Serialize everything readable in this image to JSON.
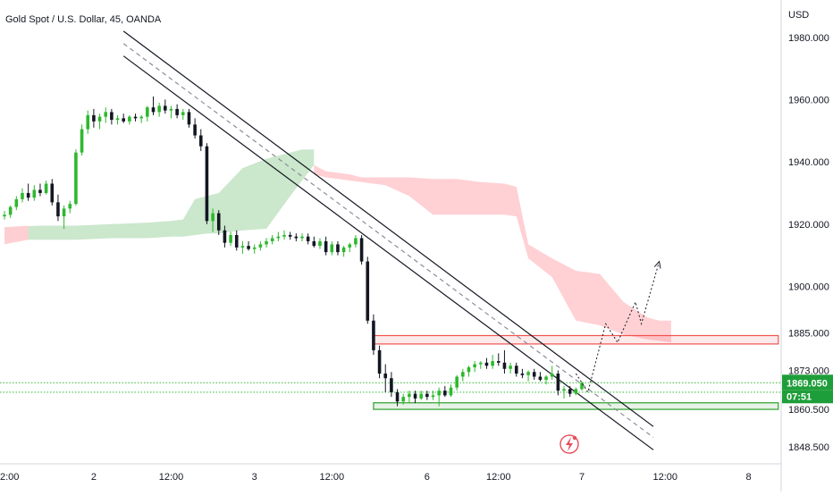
{
  "header": {
    "title": "Gold Spot / U.S. Dollar, 45, OANDA"
  },
  "axis": {
    "currency": "USD",
    "current_price": "1869.050",
    "countdown": "07:51",
    "x_labels": [
      "2:00",
      "2",
      "12:00",
      "3",
      "12:00",
      "6",
      "12:00",
      "7",
      "12:00",
      "8"
    ],
    "y_labels": [
      {
        "value": 1980,
        "label": "1980.000"
      },
      {
        "value": 1960,
        "label": "1960.000"
      },
      {
        "value": 1940,
        "label": "1940.000"
      },
      {
        "value": 1920,
        "label": "1920.000"
      },
      {
        "value": 1900,
        "label": "1900.000"
      },
      {
        "value": 1885,
        "label": "1885.000"
      },
      {
        "value": 1873,
        "label": "1873.000"
      },
      {
        "value": 1860.5,
        "label": "1860.500"
      },
      {
        "value": 1848.5,
        "label": "1848.500"
      }
    ]
  },
  "colors": {
    "up": "#26a69a",
    "up_bright": "#2eb82e",
    "down": "#131722",
    "cloud_bull": "#c8e6c9",
    "cloud_bear": "#ffcdd2",
    "resistance": "#ef5350",
    "support": "#2e9e2e",
    "price_tag": "#1e9e3a",
    "trendline": "#131722"
  },
  "chart_data": {
    "type": "candlestick",
    "title": "Gold Spot / U.S. Dollar, 45, OANDA",
    "ylabel": "USD",
    "ylim": [
      1843,
      1992
    ],
    "x_range": [
      0,
      124
    ],
    "price_scale": "linear",
    "grid": false,
    "candles": [
      [
        1922.5,
        1924.2,
        1921.5,
        1923.0
      ],
      [
        1923.0,
        1926.0,
        1922.0,
        1925.5
      ],
      [
        1925.5,
        1929.0,
        1924.5,
        1928.0
      ],
      [
        1928.0,
        1931.5,
        1927.0,
        1930.0
      ],
      [
        1930.0,
        1933.0,
        1927.5,
        1928.5
      ],
      [
        1928.5,
        1932.5,
        1927.5,
        1931.0
      ],
      [
        1931.0,
        1933.0,
        1929.0,
        1930.0
      ],
      [
        1930.0,
        1934.0,
        1929.5,
        1933.0
      ],
      [
        1933.0,
        1934.5,
        1926.0,
        1927.0
      ],
      [
        1927.0,
        1929.5,
        1921.0,
        1922.5
      ],
      [
        1922.5,
        1926.0,
        1918.5,
        1925.0
      ],
      [
        1925.0,
        1927.5,
        1923.5,
        1926.5
      ],
      [
        1926.5,
        1944.0,
        1926.0,
        1943.0
      ],
      [
        1943.0,
        1952.0,
        1942.0,
        1950.5
      ],
      [
        1950.5,
        1956.5,
        1949.0,
        1955.0
      ],
      [
        1955.0,
        1957.0,
        1951.0,
        1953.0
      ],
      [
        1953.0,
        1955.5,
        1950.5,
        1954.5
      ],
      [
        1954.5,
        1957.5,
        1952.5,
        1956.0
      ],
      [
        1956.0,
        1957.0,
        1952.0,
        1953.5
      ],
      [
        1953.5,
        1955.0,
        1952.0,
        1954.0
      ],
      [
        1954.0,
        1955.5,
        1952.5,
        1953.0
      ],
      [
        1953.0,
        1955.0,
        1952.0,
        1954.5
      ],
      [
        1954.5,
        1955.5,
        1953.0,
        1954.0
      ],
      [
        1954.0,
        1955.0,
        1952.5,
        1954.5
      ],
      [
        1954.5,
        1958.0,
        1953.0,
        1957.5
      ],
      [
        1957.5,
        1961.0,
        1955.0,
        1956.0
      ],
      [
        1956.0,
        1959.0,
        1954.5,
        1958.0
      ],
      [
        1958.0,
        1960.0,
        1955.5,
        1956.5
      ],
      [
        1956.5,
        1958.0,
        1954.0,
        1957.0
      ],
      [
        1957.0,
        1958.5,
        1954.0,
        1955.0
      ],
      [
        1955.0,
        1957.0,
        1953.5,
        1956.0
      ],
      [
        1956.0,
        1957.0,
        1951.0,
        1952.0
      ],
      [
        1952.0,
        1954.0,
        1947.5,
        1948.5
      ],
      [
        1948.5,
        1950.5,
        1943.5,
        1945.0
      ],
      [
        1945.0,
        1946.0,
        1920.0,
        1921.0
      ],
      [
        1921.0,
        1925.0,
        1917.5,
        1923.5
      ],
      [
        1923.5,
        1924.5,
        1916.5,
        1918.0
      ],
      [
        1918.0,
        1919.5,
        1912.5,
        1914.0
      ],
      [
        1914.0,
        1917.5,
        1913.0,
        1916.5
      ],
      [
        1916.5,
        1918.0,
        1911.5,
        1912.5
      ],
      [
        1912.5,
        1914.5,
        1910.5,
        1913.0
      ],
      [
        1913.0,
        1914.5,
        1911.5,
        1912.0
      ],
      [
        1912.0,
        1913.5,
        1910.5,
        1912.5
      ],
      [
        1912.5,
        1914.5,
        1911.5,
        1913.5
      ],
      [
        1913.5,
        1915.5,
        1912.5,
        1914.5
      ],
      [
        1914.5,
        1916.5,
        1913.5,
        1915.5
      ],
      [
        1915.5,
        1917.5,
        1914.5,
        1916.0
      ],
      [
        1916.0,
        1918.0,
        1915.0,
        1916.5
      ],
      [
        1916.5,
        1917.5,
        1915.0,
        1916.0
      ],
      [
        1916.0,
        1917.0,
        1914.5,
        1915.5
      ],
      [
        1915.5,
        1917.0,
        1914.5,
        1916.0
      ],
      [
        1916.0,
        1917.0,
        1913.5,
        1914.5
      ],
      [
        1914.5,
        1916.0,
        1912.5,
        1913.0
      ],
      [
        1913.0,
        1915.5,
        1912.0,
        1914.5
      ],
      [
        1914.5,
        1916.0,
        1910.0,
        1911.0
      ],
      [
        1911.0,
        1914.5,
        1910.0,
        1913.5
      ],
      [
        1913.5,
        1914.5,
        1910.0,
        1911.0
      ],
      [
        1911.0,
        1913.0,
        1909.5,
        1912.5
      ],
      [
        1912.5,
        1914.0,
        1911.0,
        1913.5
      ],
      [
        1913.5,
        1916.5,
        1912.5,
        1915.5
      ],
      [
        1915.5,
        1916.5,
        1907.0,
        1908.0
      ],
      [
        1908.0,
        1909.5,
        1888.0,
        1889.0
      ],
      [
        1889.0,
        1891.0,
        1878.0,
        1879.5
      ],
      [
        1879.5,
        1881.0,
        1870.5,
        1872.0
      ],
      [
        1872.0,
        1875.0,
        1866.0,
        1870.5
      ],
      [
        1870.5,
        1872.5,
        1864.5,
        1866.0
      ],
      [
        1866.0,
        1867.0,
        1861.5,
        1863.0
      ],
      [
        1863.0,
        1865.5,
        1862.0,
        1864.5
      ],
      [
        1864.5,
        1866.5,
        1862.5,
        1865.5
      ],
      [
        1865.5,
        1866.5,
        1862.5,
        1864.0
      ],
      [
        1864.0,
        1866.5,
        1863.5,
        1865.5
      ],
      [
        1865.5,
        1866.5,
        1863.5,
        1864.5
      ],
      [
        1864.5,
        1866.5,
        1863.5,
        1865.0
      ],
      [
        1865.0,
        1867.5,
        1861.5,
        1866.5
      ],
      [
        1866.5,
        1868.0,
        1864.5,
        1865.0
      ],
      [
        1865.0,
        1868.5,
        1864.5,
        1867.5
      ],
      [
        1867.5,
        1871.5,
        1866.5,
        1871.0
      ],
      [
        1871.0,
        1873.5,
        1869.5,
        1872.5
      ],
      [
        1872.5,
        1874.5,
        1871.0,
        1874.0
      ],
      [
        1874.0,
        1876.0,
        1872.5,
        1875.0
      ],
      [
        1875.0,
        1876.0,
        1873.5,
        1875.5
      ],
      [
        1875.5,
        1877.0,
        1873.5,
        1874.5
      ],
      [
        1874.5,
        1878.0,
        1873.5,
        1876.0
      ],
      [
        1876.0,
        1878.5,
        1874.5,
        1875.5
      ],
      [
        1875.5,
        1879.5,
        1872.0,
        1873.5
      ],
      [
        1873.5,
        1875.5,
        1872.0,
        1874.5
      ],
      [
        1874.5,
        1875.5,
        1871.0,
        1872.0
      ],
      [
        1872.0,
        1873.5,
        1870.5,
        1871.5
      ],
      [
        1871.5,
        1873.0,
        1869.5,
        1872.5
      ],
      [
        1872.5,
        1873.5,
        1870.0,
        1871.0
      ],
      [
        1871.0,
        1872.5,
        1869.5,
        1870.0
      ],
      [
        1870.0,
        1871.5,
        1868.5,
        1871.0
      ],
      [
        1871.0,
        1874.5,
        1870.0,
        1872.0
      ],
      [
        1872.0,
        1873.0,
        1865.0,
        1866.5
      ],
      [
        1866.5,
        1868.0,
        1864.0,
        1867.0
      ],
      [
        1867.0,
        1868.0,
        1864.5,
        1865.5
      ],
      [
        1865.5,
        1867.5,
        1865.0,
        1867.0
      ],
      [
        1867.0,
        1869.5,
        1866.5,
        1869.05
      ]
    ],
    "ichimoku_cloud": {
      "bull_segments": [
        {
          "x": [
            0,
            6,
            12,
            18,
            24,
            28,
            30,
            32,
            34,
            36,
            38,
            40,
            44,
            48,
            50,
            52
          ],
          "upper": [
            1919,
            1919.5,
            1919.5,
            1920,
            1920.5,
            1921,
            1921.5,
            1928,
            1929,
            1930,
            1934,
            1938,
            1941,
            1943,
            1944,
            1944
          ],
          "lower": [
            1915,
            1915,
            1915,
            1915.5,
            1915.5,
            1916,
            1916,
            1916.5,
            1917,
            1917,
            1917.5,
            1918,
            1918.5,
            1929,
            1934,
            1939
          ]
        }
      ],
      "bear_segments": [
        {
          "x": [
            0,
            4
          ],
          "upper": [
            1919,
            1919.5
          ],
          "lower": [
            1913.5,
            1915
          ]
        },
        {
          "x": [
            52,
            54,
            58,
            60,
            64,
            68,
            72,
            76,
            80,
            84,
            86,
            88,
            92,
            96,
            100,
            104,
            108,
            110,
            112
          ],
          "upper": [
            1939,
            1937,
            1936,
            1935,
            1935,
            1935,
            1934.5,
            1934.5,
            1933.5,
            1933,
            1932,
            1913.5,
            1909,
            1905,
            1904,
            1895,
            1890,
            1889,
            1889
          ],
          "lower": [
            1936,
            1935,
            1934,
            1933.5,
            1932.5,
            1929,
            1923,
            1923,
            1923,
            1923,
            1922.5,
            1909,
            1903,
            1889,
            1887.5,
            1884.5,
            1883,
            1882.5,
            1882
          ]
        }
      ]
    },
    "channel_lines": [
      {
        "style": "solid",
        "from": {
          "x": 20,
          "y": 1982
        },
        "to": {
          "x": 109,
          "y": 1855
        }
      },
      {
        "style": "dashed",
        "from": {
          "x": 20,
          "y": 1978
        },
        "to": {
          "x": 109,
          "y": 1851.5
        }
      },
      {
        "style": "solid",
        "from": {
          "x": 20,
          "y": 1974
        },
        "to": {
          "x": 109,
          "y": 1847.5
        }
      }
    ],
    "zones": [
      {
        "kind": "resistance",
        "x": [
          62,
          130
        ],
        "y": [
          1881.5,
          1884.2
        ]
      },
      {
        "kind": "support",
        "x": [
          62,
          130
        ],
        "y": [
          1860.5,
          1862.6
        ]
      }
    ],
    "horizontal_levels": [
      1869.05,
      1866.0
    ],
    "projection_path": [
      {
        "x": 96,
        "y": 1872
      },
      {
        "x": 98,
        "y": 1866
      },
      {
        "x": 101,
        "y": 1888
      },
      {
        "x": 103,
        "y": 1882
      },
      {
        "x": 106,
        "y": 1895
      },
      {
        "x": 107,
        "y": 1888
      },
      {
        "x": 110,
        "y": 1908
      }
    ],
    "x_tick_positions": [
      0,
      15,
      28,
      42,
      55,
      71,
      83,
      97,
      111,
      125
    ],
    "candles_format": [
      "open",
      "high",
      "low",
      "close"
    ]
  }
}
